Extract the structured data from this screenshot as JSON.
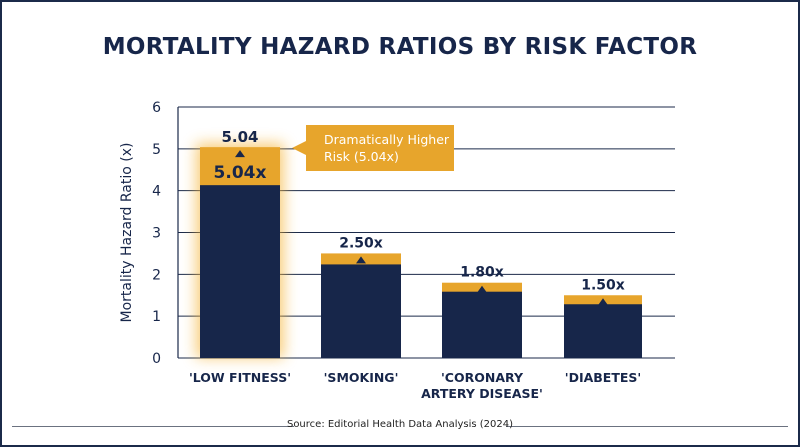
{
  "title": "MORTALITY HAZARD RATIOS BY RISK FACTOR",
  "source": "Source: Editorial Health Data Analysis (2024)",
  "callout": "Dramatically Higher Risk (5.04x)",
  "colors": {
    "bar": "#17264a",
    "accent": "#e7a52c",
    "glow": "#f5b335",
    "text": "#17264a",
    "grid": "#1b2a4a"
  },
  "chart_data": {
    "type": "bar",
    "title": "MORTALITY HAZARD RATIOS BY RISK FACTOR",
    "ylabel": "Mortality Hazard Ratio (x)",
    "xlabel": "",
    "ylim": [
      0,
      6
    ],
    "yticks": [
      "0",
      "1",
      "2",
      "3",
      "4",
      "5",
      "6"
    ],
    "grid": true,
    "categories": [
      "'LOW FITNESS'",
      "'SMOKING'",
      "'CORONARY ARTERY DISEASE'",
      "'DIABETES'"
    ],
    "values": [
      5.04,
      2.5,
      1.8,
      1.5
    ],
    "data_labels": [
      "5.04x",
      "2.50x",
      "1.80x",
      "1.50x"
    ],
    "peak_label": "5.04",
    "highlight_index": 0
  }
}
